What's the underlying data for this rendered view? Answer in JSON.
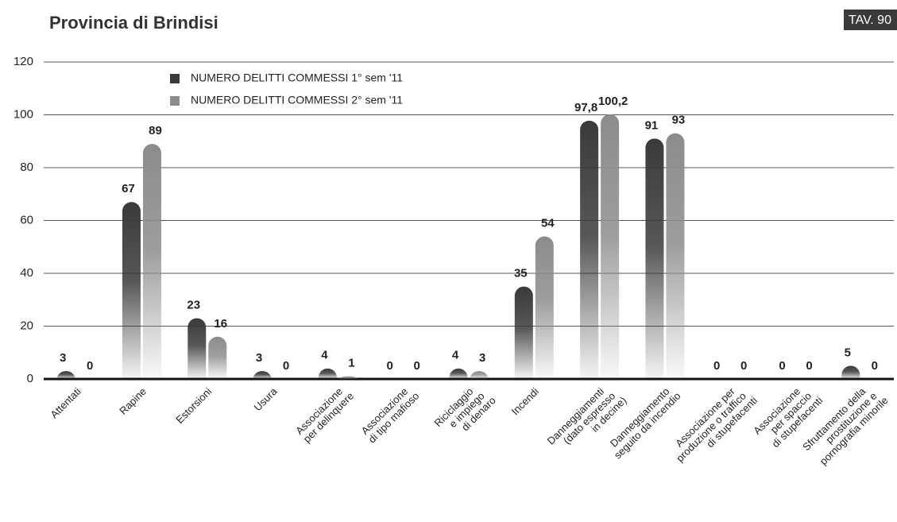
{
  "chart_data": {
    "type": "bar",
    "title": "Provincia di Brindisi",
    "badge": "TAV. 90",
    "categories": [
      [
        "Attentati"
      ],
      [
        "Rapine"
      ],
      [
        "Estorsioni"
      ],
      [
        "Usura"
      ],
      [
        "Associazione",
        "per delinquere"
      ],
      [
        "Associazione",
        "di tipo mafioso"
      ],
      [
        "Riciclaggio",
        "e impiego",
        "di denaro"
      ],
      [
        "Incendi"
      ],
      [
        "Danneggiamenti",
        "(dato espresso",
        "in decine)"
      ],
      [
        "Danneggiamento",
        "seguito da incendio"
      ],
      [
        "Associazione per",
        "produzione o traffico",
        "di stupefacenti"
      ],
      [
        "Associazione",
        "per spaccio",
        "di stupefacenti"
      ],
      [
        "Sfruttamento della",
        "prostituzione e",
        "pornografia minorile"
      ]
    ],
    "series": [
      {
        "name": "NUMERO DELITTI COMMESSI 1° sem '11",
        "color": "#3a3a3a",
        "values": [
          3,
          67,
          23,
          3,
          4,
          0,
          4,
          35,
          97.8,
          91,
          0,
          0,
          5
        ],
        "value_labels": [
          "3",
          "67",
          "23",
          "3",
          "4",
          "0",
          "4",
          "35",
          "97,8",
          "91",
          "0",
          "0",
          "5"
        ]
      },
      {
        "name": "NUMERO DELITTI COMMESSI 2° sem '11",
        "color": "#8c8c8c",
        "values": [
          0,
          89,
          16,
          0,
          1,
          0,
          3,
          54,
          100.2,
          93,
          0,
          0,
          0
        ],
        "value_labels": [
          "0",
          "89",
          "16",
          "0",
          "1",
          "0",
          "3",
          "54",
          "100,2",
          "93",
          "0",
          "0",
          "0"
        ]
      }
    ],
    "ylim": [
      0,
      120
    ],
    "yticks": [
      0,
      20,
      40,
      60,
      80,
      100,
      120
    ],
    "grid": true
  }
}
